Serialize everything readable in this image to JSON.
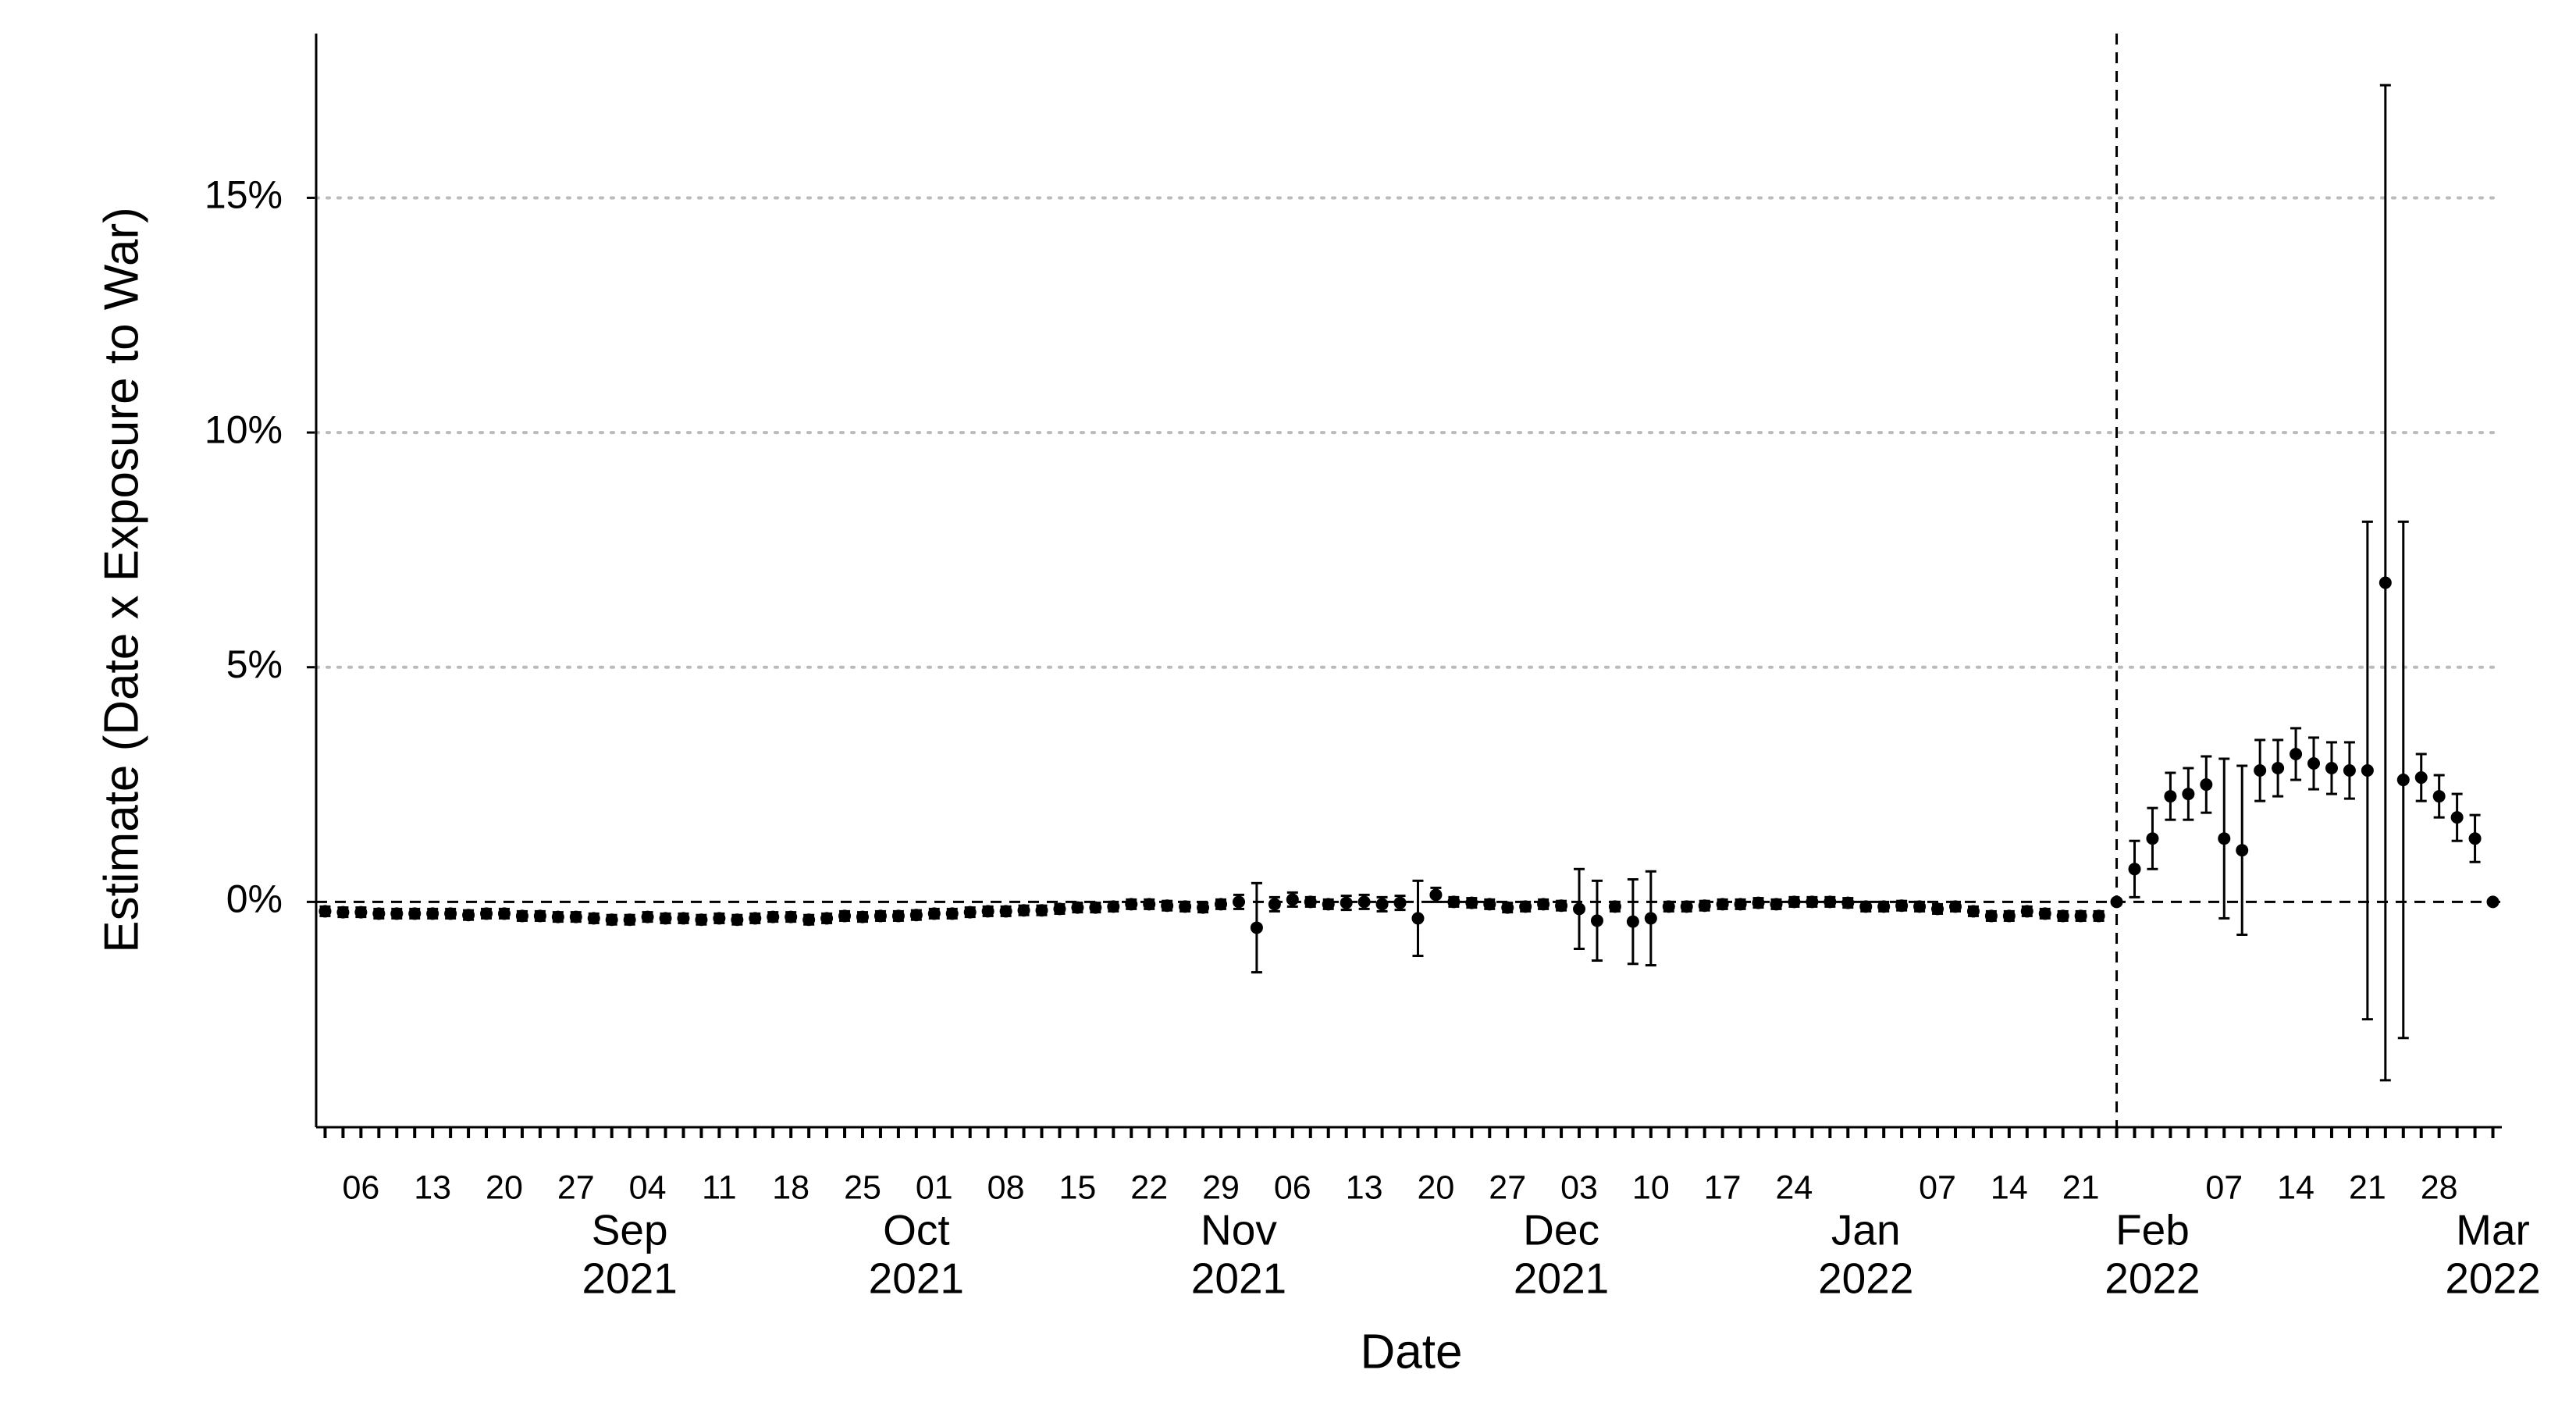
{
  "chart_data": {
    "type": "errorbar",
    "x_label": "Date",
    "y_label": "Estimate (Date x Exposure to War)",
    "categories": [
      null,
      null,
      "06",
      null,
      null,
      null,
      "13",
      null,
      null,
      null,
      "20",
      null,
      null,
      null,
      "27",
      null,
      null,
      null,
      "04",
      null,
      null,
      null,
      "11",
      null,
      null,
      null,
      "18",
      null,
      null,
      null,
      "25",
      null,
      null,
      null,
      "01",
      null,
      null,
      null,
      "08",
      null,
      null,
      null,
      "15",
      null,
      null,
      null,
      "22",
      null,
      null,
      null,
      "29",
      null,
      null,
      null,
      "06",
      null,
      null,
      null,
      "13",
      null,
      null,
      null,
      "20",
      null,
      null,
      null,
      "27",
      null,
      null,
      null,
      "03",
      null,
      null,
      null,
      "10",
      null,
      null,
      null,
      "17",
      null,
      null,
      null,
      "24",
      null,
      null,
      null,
      null,
      null,
      null,
      null,
      "07",
      null,
      null,
      null,
      "14",
      null,
      null,
      null,
      "21",
      null,
      null,
      null,
      null,
      null,
      null,
      null,
      "07",
      null,
      null,
      null,
      "14",
      null,
      null,
      null,
      "21",
      null,
      null,
      null,
      "28",
      null,
      null,
      null
    ],
    "month_ticks": [
      {
        "value": 17,
        "label": [
          "Sep",
          "2021"
        ]
      },
      {
        "value": 33,
        "label": [
          "Oct",
          "2021"
        ]
      },
      {
        "value": 51,
        "label": [
          "Nov",
          "2021"
        ]
      },
      {
        "value": 69,
        "label": [
          "Dec",
          "2021"
        ]
      },
      {
        "value": 86,
        "label": [
          "Jan",
          "2022"
        ]
      },
      {
        "value": 102,
        "label": [
          "Feb",
          "2022"
        ]
      },
      {
        "value": 121,
        "label": [
          "Mar",
          "2022"
        ]
      }
    ],
    "values": [
      -0.2,
      -0.22,
      -0.22,
      -0.25,
      -0.25,
      -0.25,
      -0.25,
      -0.25,
      -0.28,
      -0.25,
      -0.25,
      -0.3,
      -0.3,
      -0.32,
      -0.32,
      -0.35,
      -0.38,
      -0.38,
      -0.32,
      -0.35,
      -0.35,
      -0.38,
      -0.35,
      -0.38,
      -0.35,
      -0.32,
      -0.32,
      -0.38,
      -0.35,
      -0.3,
      -0.32,
      -0.3,
      -0.3,
      -0.28,
      -0.25,
      -0.25,
      -0.22,
      -0.2,
      -0.2,
      -0.18,
      -0.18,
      -0.15,
      -0.12,
      -0.12,
      -0.1,
      -0.05,
      -0.05,
      -0.08,
      -0.1,
      -0.12,
      -0.05,
      0.0,
      -0.55,
      -0.05,
      0.05,
      0.0,
      -0.05,
      -0.02,
      0.0,
      -0.05,
      -0.02,
      -0.35,
      0.15,
      0.0,
      -0.02,
      -0.05,
      -0.12,
      -0.1,
      -0.05,
      -0.08,
      -0.15,
      -0.4,
      -0.1,
      -0.42,
      -0.35,
      -0.1,
      -0.1,
      -0.08,
      -0.05,
      -0.05,
      -0.02,
      -0.05,
      0.0,
      0.0,
      0.0,
      -0.02,
      -0.1,
      -0.1,
      -0.08,
      -0.1,
      -0.15,
      -0.1,
      -0.2,
      -0.3,
      -0.3,
      -0.2,
      -0.25,
      -0.3,
      -0.3,
      -0.3,
      0.0,
      0.7,
      1.35,
      2.25,
      2.3,
      2.5,
      1.35,
      1.1,
      2.8,
      2.85,
      3.15,
      2.95,
      2.85,
      2.8,
      2.8,
      6.8,
      2.6,
      2.65,
      2.25,
      1.8,
      1.35,
      0.0
    ],
    "errors": [
      0.1,
      0.1,
      0.1,
      0.1,
      0.1,
      0.1,
      0.1,
      0.1,
      0.1,
      0.1,
      0.1,
      0.1,
      0.1,
      0.1,
      0.1,
      0.1,
      0.1,
      0.1,
      0.1,
      0.1,
      0.1,
      0.1,
      0.1,
      0.1,
      0.1,
      0.1,
      0.1,
      0.1,
      0.1,
      0.1,
      0.1,
      0.1,
      0.1,
      0.1,
      0.1,
      0.1,
      0.1,
      0.1,
      0.1,
      0.1,
      0.1,
      0.1,
      0.1,
      0.1,
      0.1,
      0.1,
      0.1,
      0.1,
      0.1,
      0.1,
      0.1,
      0.15,
      0.95,
      0.15,
      0.15,
      0.1,
      0.1,
      0.15,
      0.15,
      0.15,
      0.15,
      0.8,
      0.15,
      0.1,
      0.1,
      0.1,
      0.1,
      0.1,
      0.1,
      0.1,
      0.85,
      0.85,
      0.1,
      0.9,
      1.0,
      0.1,
      0.1,
      0.1,
      0.1,
      0.1,
      0.1,
      0.1,
      0.1,
      0.1,
      0.1,
      0.1,
      0.1,
      0.1,
      0.1,
      0.1,
      0.1,
      0.1,
      0.1,
      0.1,
      0.1,
      0.1,
      0.1,
      0.1,
      0.1,
      0.1,
      0.0,
      0.6,
      0.65,
      0.5,
      0.55,
      0.6,
      1.7,
      1.8,
      0.65,
      0.6,
      0.55,
      0.55,
      0.55,
      0.6,
      5.3,
      10.6,
      5.5,
      0.5,
      0.45,
      0.5,
      0.5,
      0.0
    ],
    "color": "#000000",
    "xlim": [
      -0.5,
      121.5
    ],
    "ylim": [
      -4.8,
      18.5
    ],
    "yticks": [
      {
        "value": 0,
        "label": "0%"
      },
      {
        "value": 5,
        "label": "5%"
      },
      {
        "value": 10,
        "label": "10%"
      },
      {
        "value": 15,
        "label": "15%"
      }
    ],
    "grid": true,
    "hline": 0,
    "vline": 100
  }
}
